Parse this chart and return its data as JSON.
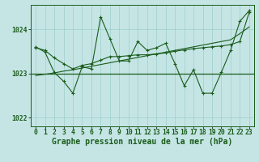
{
  "title": "Graphe pression niveau de la mer (hPa)",
  "x_labels": [
    "0",
    "1",
    "2",
    "3",
    "4",
    "5",
    "6",
    "7",
    "8",
    "9",
    "10",
    "11",
    "12",
    "13",
    "14",
    "15",
    "16",
    "17",
    "18",
    "19",
    "20",
    "21",
    "22",
    "23"
  ],
  "xlim": [
    -0.5,
    23.5
  ],
  "ylim": [
    1021.8,
    1024.55
  ],
  "yticks": [
    1022,
    1023,
    1024
  ],
  "grid_color": "#9ecece",
  "bg_color": "#c5e5e5",
  "line_color": "#1a5c1a",
  "mean_line_y": 1023.0,
  "trend_line": [
    1022.95,
    1022.98,
    1023.01,
    1023.05,
    1023.08,
    1023.12,
    1023.16,
    1023.2,
    1023.24,
    1023.28,
    1023.32,
    1023.36,
    1023.4,
    1023.44,
    1023.48,
    1023.52,
    1023.56,
    1023.6,
    1023.64,
    1023.68,
    1023.72,
    1023.76,
    1023.9,
    1024.05
  ],
  "series_smooth": [
    1023.58,
    1023.52,
    1023.35,
    1023.22,
    1023.1,
    1023.18,
    1023.22,
    1023.3,
    1023.38,
    1023.38,
    1023.4,
    1023.42,
    1023.42,
    1023.44,
    1023.46,
    1023.5,
    1023.53,
    1023.56,
    1023.58,
    1023.6,
    1023.62,
    1023.65,
    1023.72,
    1024.38
  ],
  "series_zigzag": [
    1023.6,
    1023.48,
    1023.02,
    1022.82,
    1022.55,
    1023.15,
    1023.1,
    1024.28,
    1023.78,
    1023.28,
    1023.28,
    1023.72,
    1023.52,
    1023.58,
    1023.68,
    1023.22,
    1022.72,
    1023.08,
    1022.55,
    1022.55,
    1023.02,
    1023.52,
    1024.18,
    1024.42
  ],
  "title_fontsize": 7,
  "tick_fontsize": 5.8,
  "label_fontsize": 7
}
